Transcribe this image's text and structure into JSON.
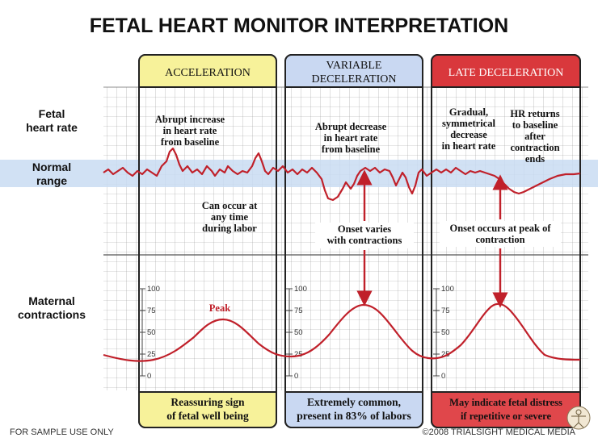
{
  "title": "FETAL HEART MONITOR INTERPRETATION",
  "row_labels": {
    "fetal_heart_rate": [
      "Fetal",
      "heart rate"
    ],
    "normal_range": [
      "Normal",
      "range"
    ],
    "maternal_contractions": [
      "Maternal",
      "contractions"
    ]
  },
  "panels": [
    {
      "header": [
        "ACCELERATION"
      ],
      "fhr_note": [
        "Abrupt increase",
        "in heart rate",
        "from baseline"
      ],
      "middle_note": [
        "Can occur at",
        "any time",
        "during labor"
      ],
      "peak_label": "Peak",
      "footer": [
        "Reassuring sign",
        "of fetal well being"
      ],
      "header_color": "#f7f29a",
      "footer_color": "#f7f29a"
    },
    {
      "header": [
        "VARIABLE",
        "DECELERATION"
      ],
      "fhr_note": [
        "Abrupt decrease",
        "in heart rate",
        "from baseline"
      ],
      "middle_note": [
        "Onset varies",
        "with contractions"
      ],
      "footer": [
        "Extremely common,",
        "present in 83% of labors"
      ],
      "header_color": "#c9d8f2",
      "footer_color": "#c9d8f2"
    },
    {
      "header": [
        "LATE DECELERATION"
      ],
      "fhr_note_left": [
        "Gradual,",
        "symmetrical",
        "decrease",
        "in heart rate"
      ],
      "fhr_note_right": [
        "HR returns",
        "to baseline",
        "after",
        "contraction",
        "ends"
      ],
      "middle_note": [
        "Onset occurs at peak of",
        "contraction"
      ],
      "footer": [
        "May indicate fetal distress",
        "if repetitive or severe"
      ],
      "header_color": "#d9383c",
      "header_text_color": "#ffffff",
      "footer_color": "#e0474b"
    }
  ],
  "contraction_ticks": [
    "100",
    "75",
    "50",
    "25",
    "0"
  ],
  "footer_left": "FOR SAMPLE USE ONLY",
  "footer_right": "©2008 TRIALSIGHT MEDICAL MEDIA",
  "colors": {
    "trace": "#c0202a",
    "arrow": "#c0202a",
    "normal_band": "#c9dcf2",
    "grid": "#8a8a8a"
  }
}
